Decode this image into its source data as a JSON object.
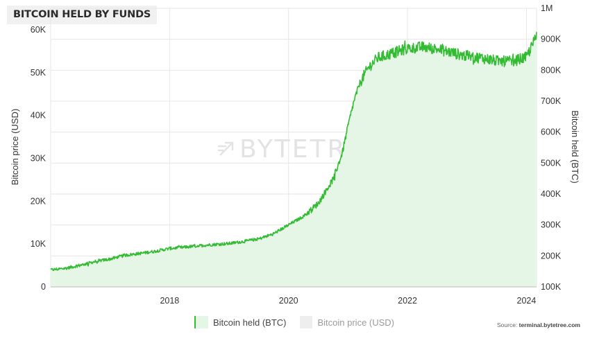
{
  "title": "BITCOIN HELD BY FUNDS",
  "watermark": "BYTETREE",
  "source_prefix": "Source: ",
  "source_site": "terminal.bytetree.com",
  "colors": {
    "series": "#33bb33",
    "fill": "#e6f6e6",
    "grid": "#e6e6e6",
    "price_swatch": "#eeeeee"
  },
  "chart_data": {
    "type": "area",
    "x_ticks": [
      "2018",
      "2020",
      "2022",
      "2024"
    ],
    "x_range": [
      2016.0,
      2024.17
    ],
    "y_left": {
      "label": "Bitcoin price (USD)",
      "range": [
        0,
        65000
      ],
      "ticks": [
        "0",
        "10K",
        "20K",
        "30K",
        "40K",
        "50K",
        "60K"
      ]
    },
    "y_right": {
      "label": "Bitcoin held (BTC)",
      "range": [
        100000,
        1000000
      ],
      "ticks": [
        "100K",
        "200K",
        "300K",
        "400K",
        "500K",
        "600K",
        "700K",
        "800K",
        "900K",
        "1M"
      ]
    },
    "legend": {
      "placement": "bottom-center",
      "items": [
        "Bitcoin held (BTC)",
        "Bitcoin price (USD)"
      ]
    },
    "grid": true,
    "series": [
      {
        "name": "Bitcoin held (BTC)",
        "axis": "right",
        "points": [
          [
            2016.0,
            155000
          ],
          [
            2016.25,
            160000
          ],
          [
            2016.5,
            170000
          ],
          [
            2016.75,
            182000
          ],
          [
            2017.0,
            190000
          ],
          [
            2017.25,
            202000
          ],
          [
            2017.5,
            208000
          ],
          [
            2017.75,
            215000
          ],
          [
            2018.0,
            224000
          ],
          [
            2018.25,
            228000
          ],
          [
            2018.5,
            233000
          ],
          [
            2018.75,
            237000
          ],
          [
            2019.0,
            240000
          ],
          [
            2019.25,
            247000
          ],
          [
            2019.5,
            255000
          ],
          [
            2019.75,
            272000
          ],
          [
            2020.0,
            300000
          ],
          [
            2020.25,
            328000
          ],
          [
            2020.5,
            370000
          ],
          [
            2020.75,
            448000
          ],
          [
            2020.9,
            530000
          ],
          [
            2021.0,
            620000
          ],
          [
            2021.1,
            700000
          ],
          [
            2021.2,
            760000
          ],
          [
            2021.35,
            810000
          ],
          [
            2021.5,
            840000
          ],
          [
            2021.75,
            855000
          ],
          [
            2022.0,
            870000
          ],
          [
            2022.25,
            875000
          ],
          [
            2022.5,
            868000
          ],
          [
            2022.75,
            857000
          ],
          [
            2023.0,
            845000
          ],
          [
            2023.25,
            840000
          ],
          [
            2023.5,
            830000
          ],
          [
            2023.75,
            828000
          ],
          [
            2024.0,
            842000
          ],
          [
            2024.17,
            910000
          ]
        ]
      }
    ]
  }
}
